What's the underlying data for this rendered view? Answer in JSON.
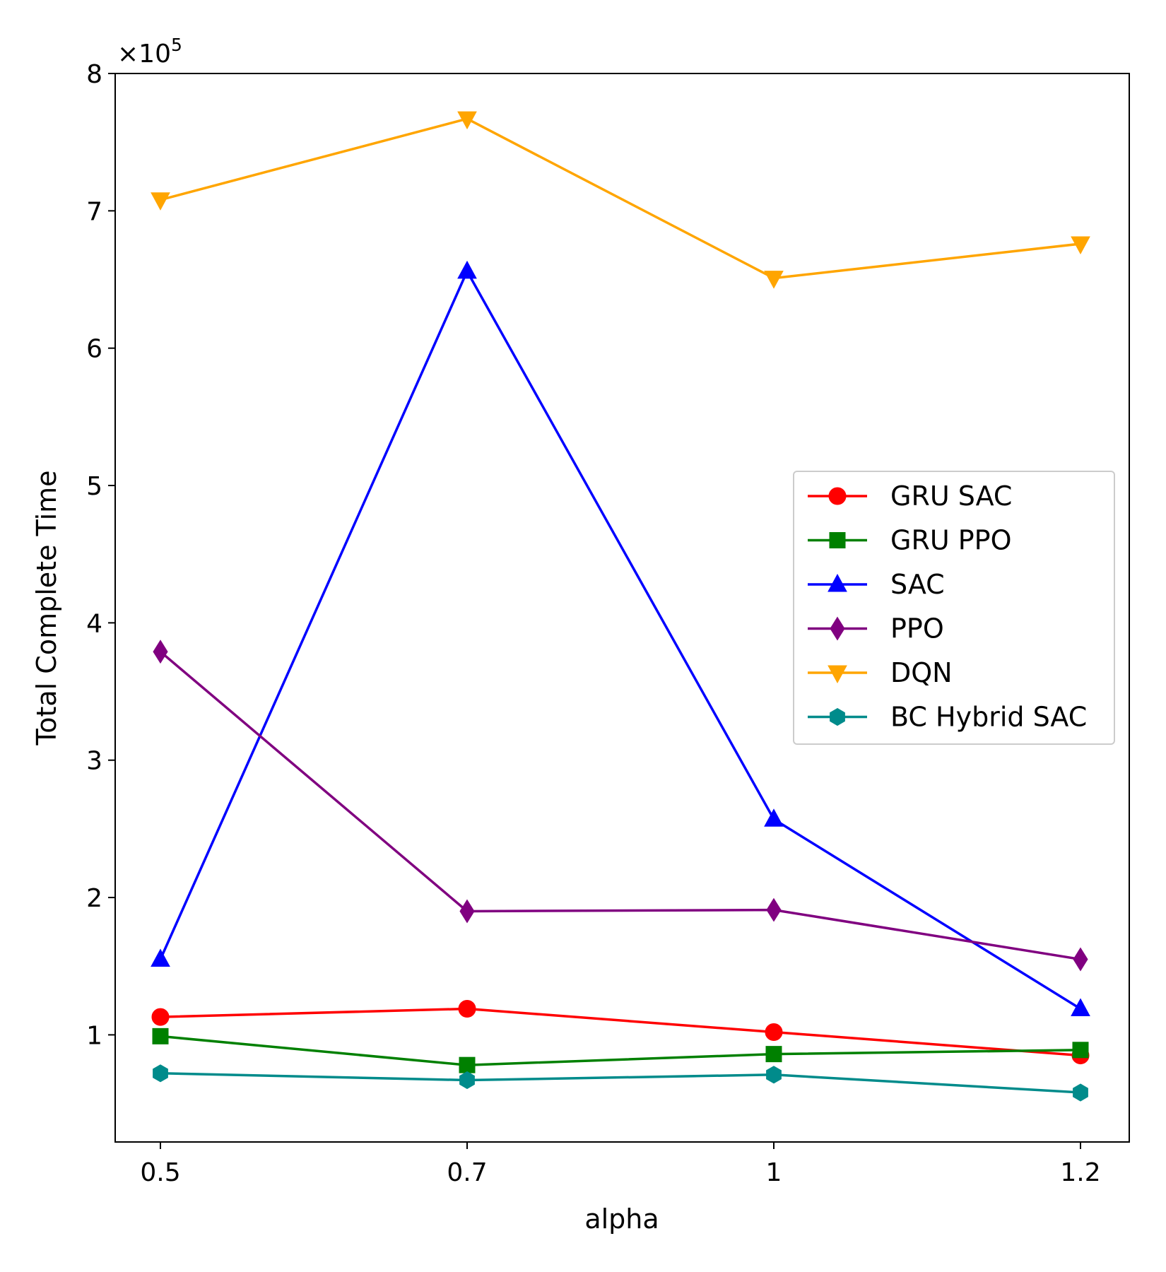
{
  "chart_data": {
    "type": "line",
    "title": "",
    "xlabel": "alpha",
    "ylabel": "Total Complete Time",
    "y_scale_label": {
      "base": "×10",
      "exponent": "5"
    },
    "categories": [
      "0.5",
      "0.7",
      "1",
      "1.2"
    ],
    "ylim": [
      0.22,
      8.0
    ],
    "y_ticks": [
      1,
      2,
      3,
      4,
      5,
      6,
      7,
      8
    ],
    "y_tick_labels": [
      "1",
      "2",
      "3",
      "4",
      "5",
      "6",
      "7",
      "8"
    ],
    "grid": false,
    "legend_position": "center-right",
    "series": [
      {
        "name": "GRU SAC",
        "color": "#ff0000",
        "marker": "circle",
        "values": [
          1.13,
          1.19,
          1.02,
          0.85
        ]
      },
      {
        "name": "GRU PPO",
        "color": "#008000",
        "marker": "square",
        "values": [
          0.99,
          0.78,
          0.86,
          0.89
        ]
      },
      {
        "name": "SAC",
        "color": "#0000ff",
        "marker": "triangle-up",
        "values": [
          1.55,
          6.56,
          2.57,
          1.19
        ]
      },
      {
        "name": "PPO",
        "color": "#800080",
        "marker": "diamond",
        "values": [
          3.79,
          1.9,
          1.91,
          1.55
        ]
      },
      {
        "name": "DQN",
        "color": "#ffa500",
        "marker": "triangle-down",
        "values": [
          7.08,
          7.67,
          6.51,
          6.76
        ]
      },
      {
        "name": "BC Hybrid SAC",
        "color": "#008b8b",
        "marker": "hexagon",
        "values": [
          0.72,
          0.67,
          0.71,
          0.58
        ]
      }
    ]
  }
}
